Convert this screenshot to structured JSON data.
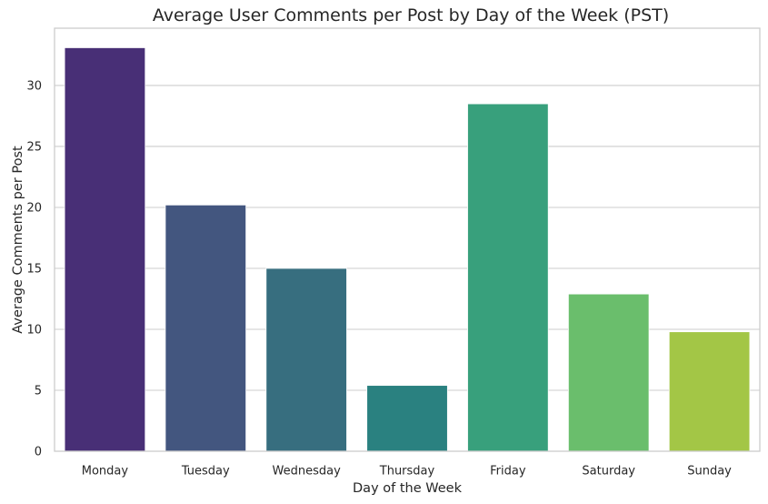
{
  "chart_data": {
    "type": "bar",
    "title": "Average User Comments per Post by Day of the Week (PST)",
    "xlabel": "Day of the Week",
    "ylabel": "Average Comments per Post",
    "categories": [
      "Monday",
      "Tuesday",
      "Wednesday",
      "Thursday",
      "Friday",
      "Saturday",
      "Sunday"
    ],
    "values": [
      33.1,
      20.2,
      15.0,
      5.4,
      28.5,
      12.9,
      9.8
    ],
    "colors": [
      "#482f76",
      "#43567f",
      "#376e7f",
      "#2a8180",
      "#38a07c",
      "#6abe6c",
      "#a3c646"
    ],
    "ylim": [
      0,
      34.7
    ],
    "yticks": [
      0,
      5,
      10,
      15,
      20,
      25,
      30
    ],
    "grid": true,
    "legend": "none"
  }
}
